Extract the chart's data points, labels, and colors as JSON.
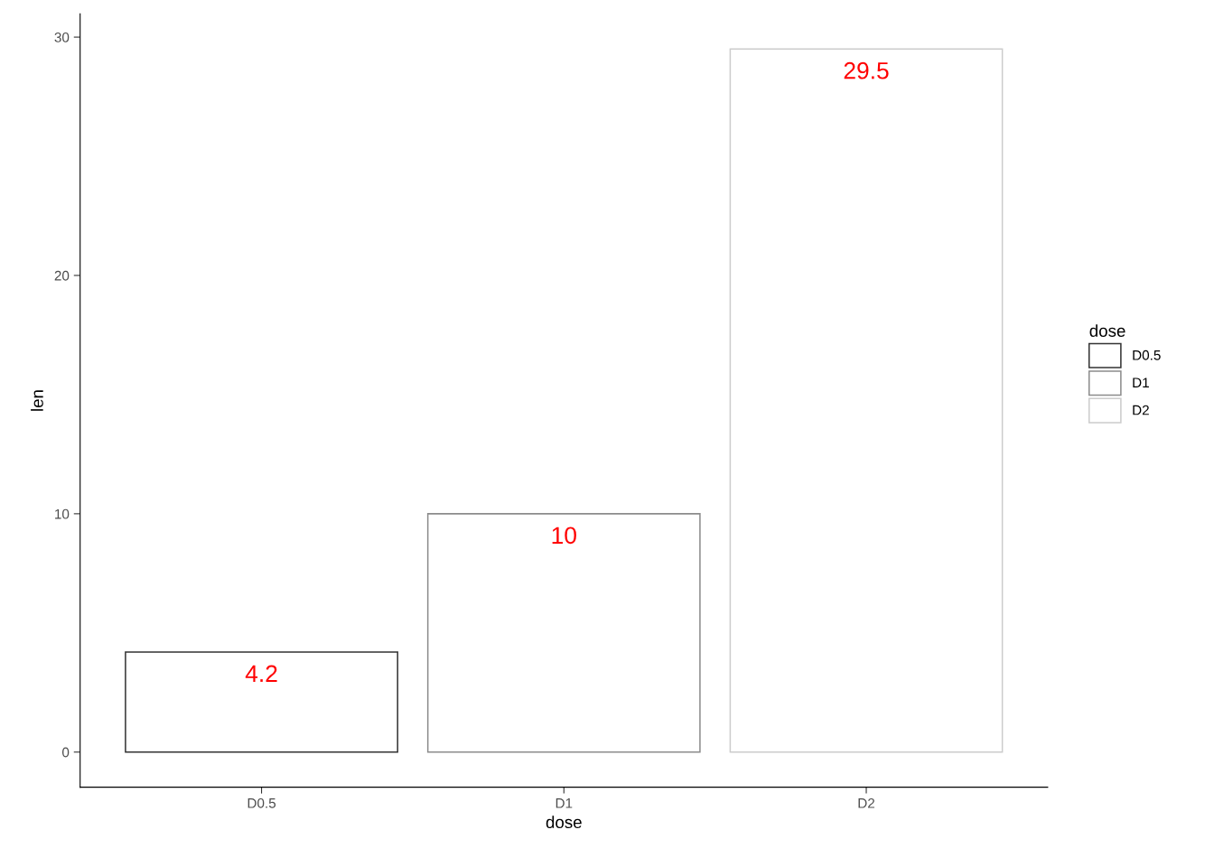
{
  "chart_data": {
    "type": "bar",
    "xlabel": "dose",
    "ylabel": "len",
    "legend_title": "dose",
    "categories": [
      "D0.5",
      "D1",
      "D2"
    ],
    "stacked": true,
    "series": [
      {
        "name": "D0.5",
        "color": "#333333",
        "values": [
          4.2,
          null,
          null
        ]
      },
      {
        "name": "D1",
        "color": "#8c8c8c",
        "values": [
          null,
          10,
          null
        ]
      },
      {
        "name": "D2",
        "color": "#cccccc",
        "values": [
          null,
          null,
          29.5
        ]
      }
    ],
    "ylim": [
      -1.475,
      30.975
    ],
    "yticks": [
      0,
      10,
      20,
      30
    ],
    "data_labels": true,
    "legend": "right",
    "grid": false
  }
}
